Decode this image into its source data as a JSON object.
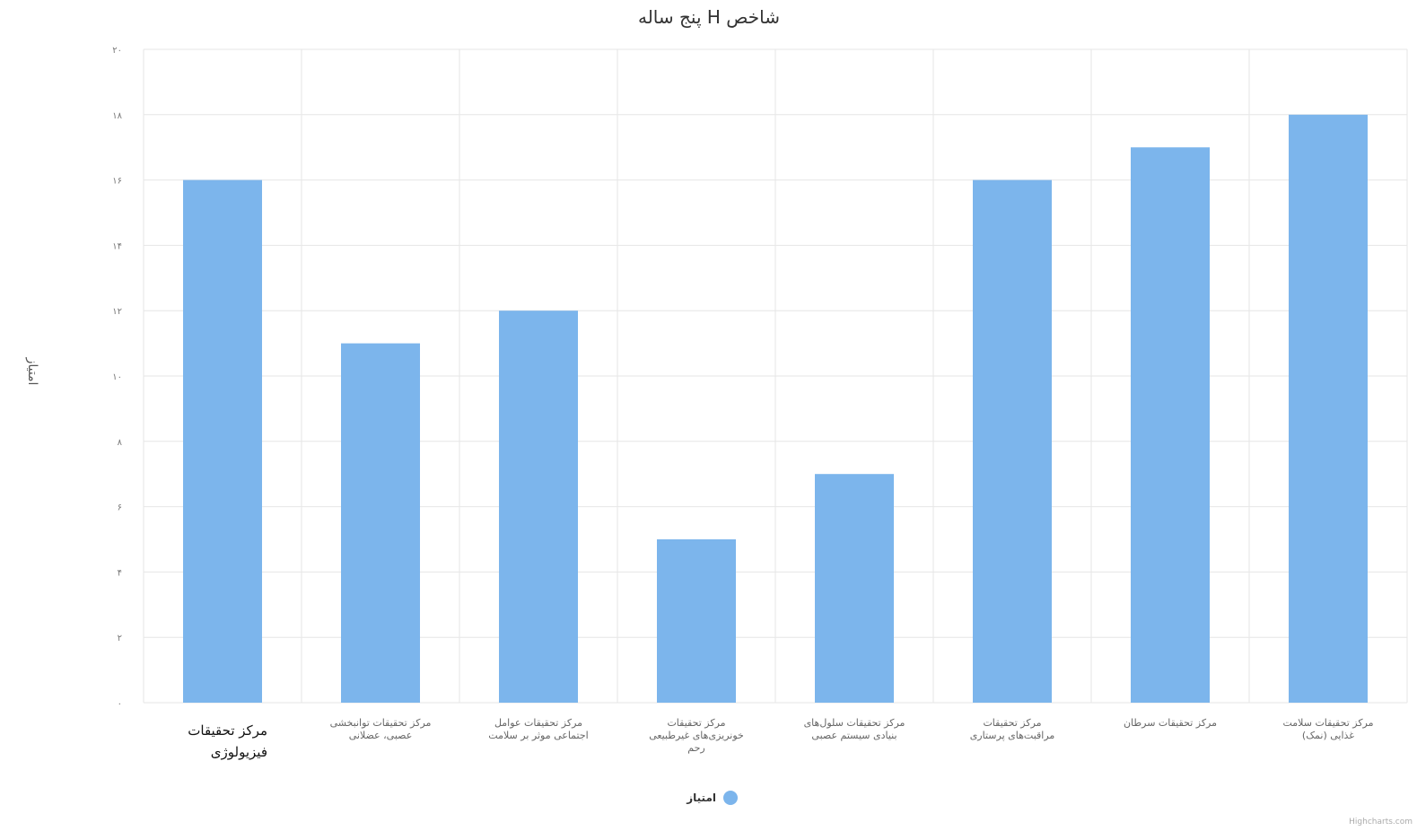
{
  "chart_data": {
    "type": "bar",
    "title": "پنج ساله H شاخص",
    "ylabel": "امتیاز",
    "ylim": [
      0,
      20
    ],
    "yticks": [
      0,
      2,
      4,
      6,
      8,
      10,
      12,
      14,
      16,
      18,
      20
    ],
    "ytick_labels": [
      "۰",
      "۲",
      "۴",
      "۶",
      "۸",
      "۱۰",
      "۱۲",
      "۱۴",
      "۱۶",
      "۱۸",
      "۲۰"
    ],
    "grid": true,
    "legend_position": "bottom",
    "categories": [
      "مرکز تحقیقات فیزیولوژی",
      "مرکز تحقیقات توانبخشی عصبی، عضلانی",
      "مرکز تحقیقات عوامل اجتماعی موثر بر سلامت",
      "مرکز تحقیقات خونریزی‌های غیرطبیعی رحم",
      "مرکز تحقیقات سلول‌های بنیادی سیستم عصبی",
      "مرکز تحقیقات مراقبت‌های پرستاری",
      "مرکز تحقیقات سرطان",
      "مرکز تحقیقات سلامت غذایی (نمک)"
    ],
    "series": [
      {
        "name": "امتیاز",
        "color": "#7cb5ec",
        "values": [
          16,
          11,
          12,
          5,
          7,
          16,
          17,
          18
        ]
      }
    ]
  },
  "credits": "Highcharts.com"
}
